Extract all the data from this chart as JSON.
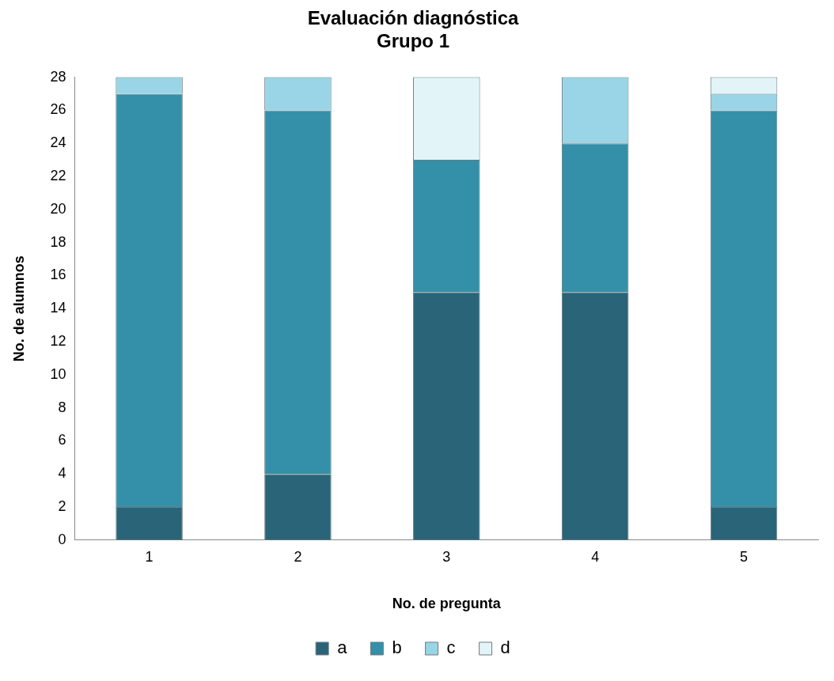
{
  "chart_data": {
    "type": "bar",
    "title": [
      "Evaluación diagnóstica",
      "Grupo 1"
    ],
    "xlabel": "No. de pregunta",
    "ylabel": "No. de alumnos",
    "categories": [
      "1",
      "2",
      "3",
      "4",
      "5"
    ],
    "stacked": true,
    "series": [
      {
        "name": "a",
        "color": "#2a6478",
        "values": [
          2,
          4,
          15,
          15,
          2
        ]
      },
      {
        "name": "b",
        "color": "#3390a8",
        "values": [
          25,
          22,
          8,
          9,
          24
        ]
      },
      {
        "name": "c",
        "color": "#99d5e6",
        "values": [
          1,
          2,
          0,
          4,
          1
        ]
      },
      {
        "name": "d",
        "color": "#e2f4f8",
        "values": [
          0,
          0,
          5,
          0,
          1
        ]
      }
    ],
    "ylim": [
      0,
      28
    ],
    "yticks": [
      0,
      2,
      4,
      6,
      8,
      10,
      12,
      14,
      16,
      18,
      20,
      22,
      24,
      26,
      28
    ],
    "grid": false,
    "legend": "bottom"
  }
}
